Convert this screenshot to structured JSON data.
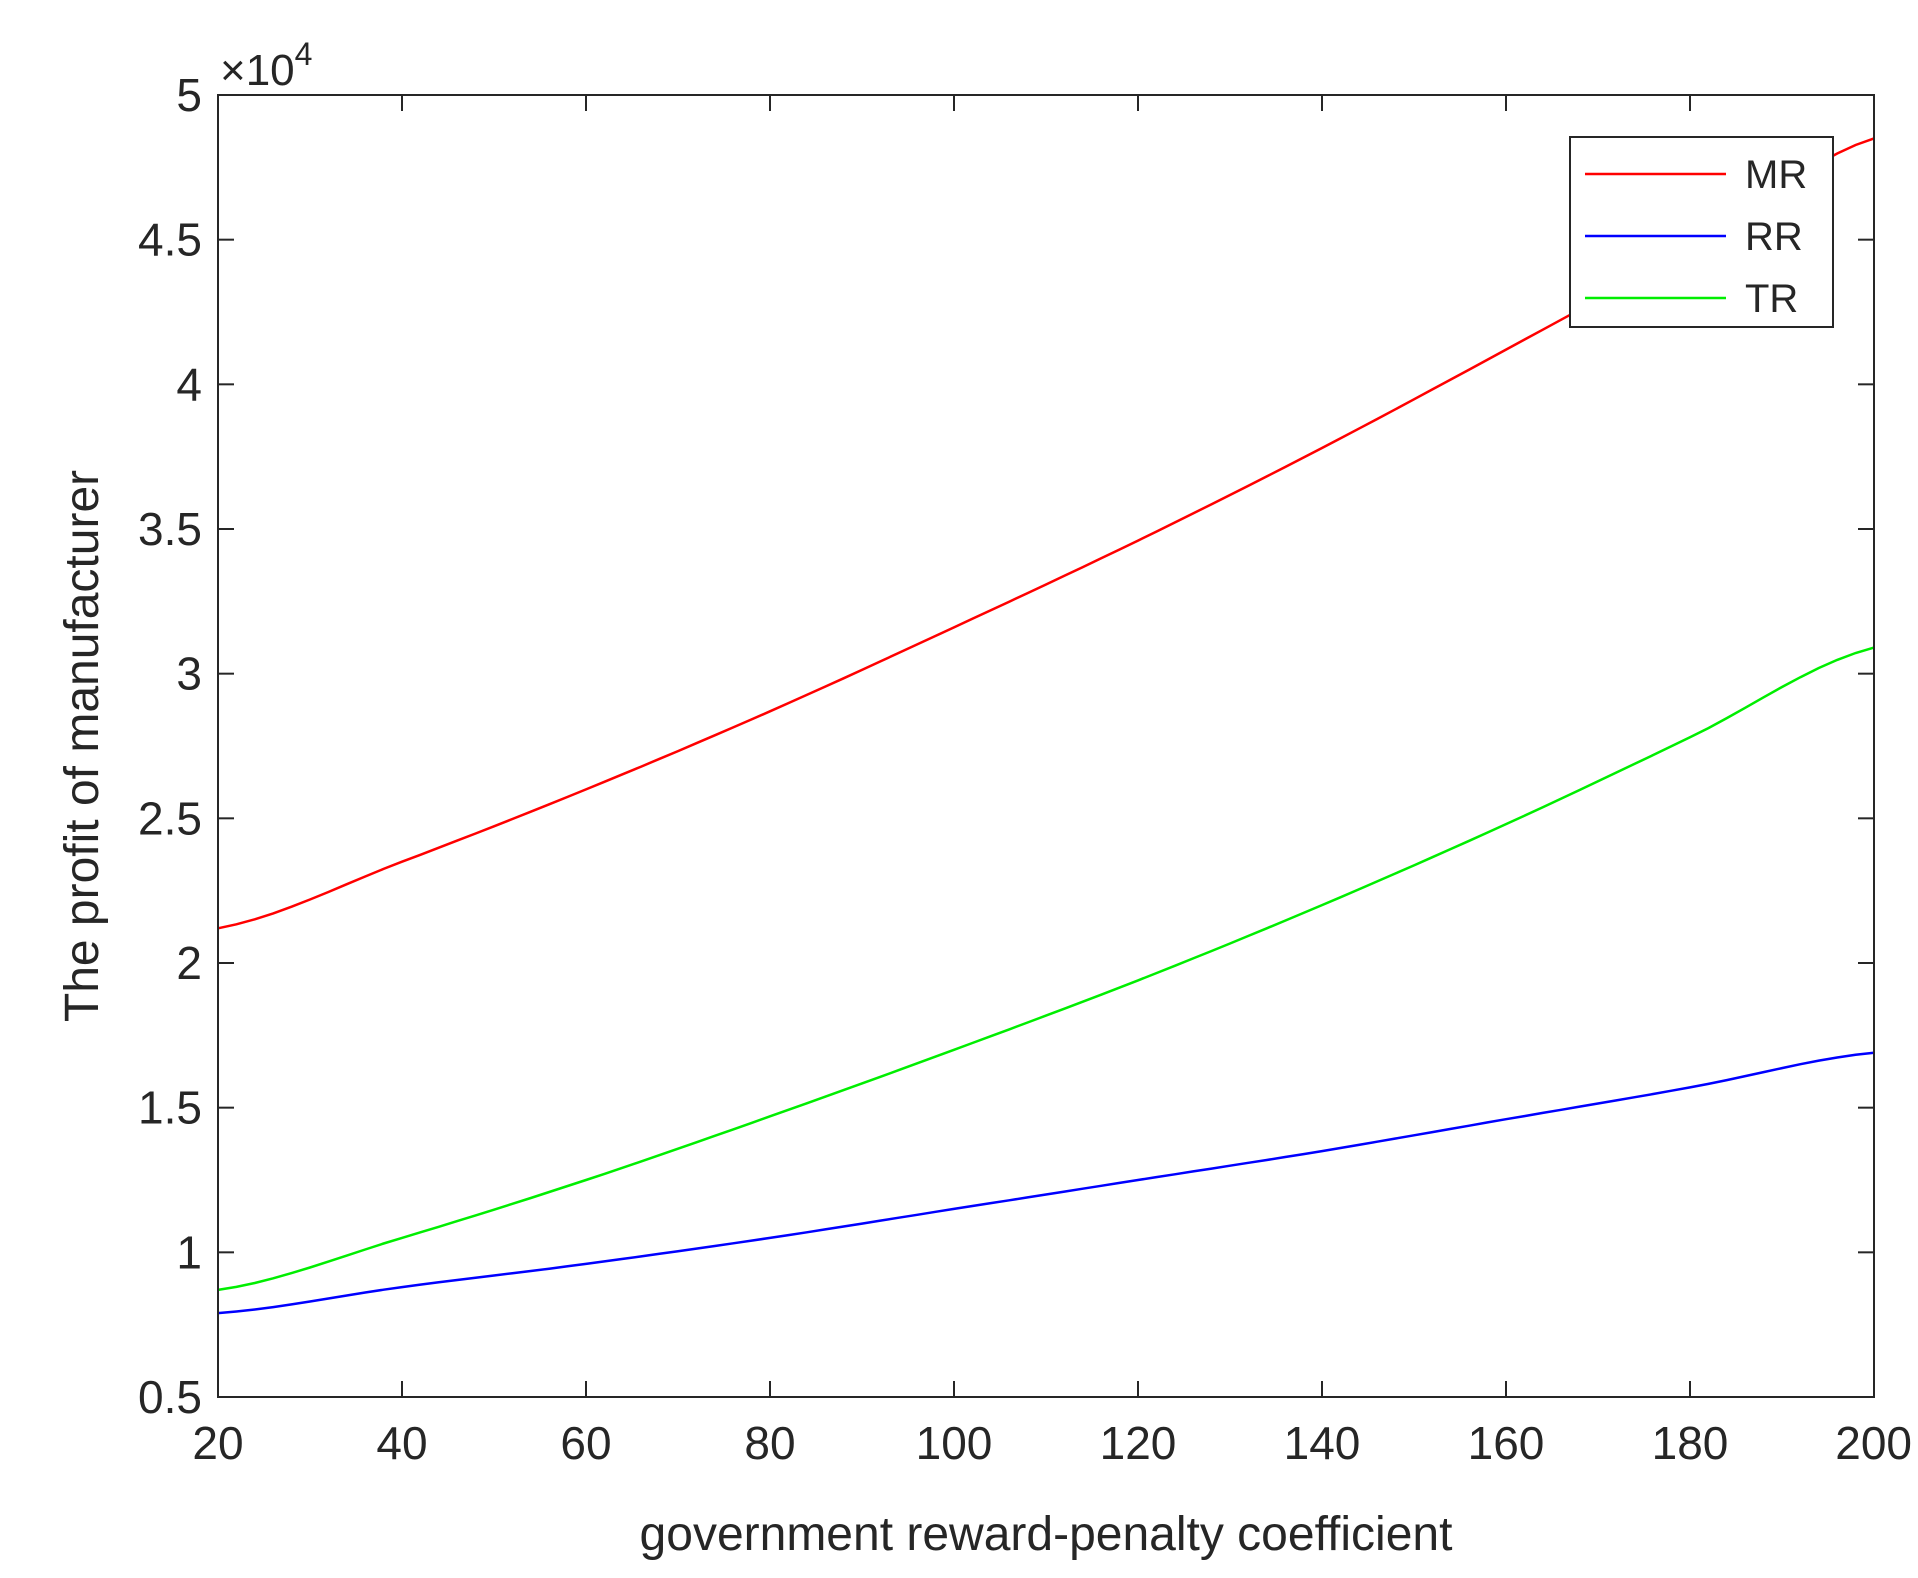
{
  "chart_data": {
    "type": "line",
    "title": "",
    "xlabel": "government reward-penalty coefficient",
    "ylabel": "The profit of manufacturer",
    "xlim": [
      20,
      200
    ],
    "ylim": [
      0.5,
      5
    ],
    "y_multiplier_label": "×10",
    "y_multiplier_exponent": "4",
    "xticks": [
      20,
      40,
      60,
      80,
      100,
      120,
      140,
      160,
      180,
      200
    ],
    "xtick_labels": [
      "20",
      "40",
      "60",
      "80",
      "100",
      "120",
      "140",
      "160",
      "180",
      "200"
    ],
    "yticks": [
      0.5,
      1,
      1.5,
      2,
      2.5,
      3,
      3.5,
      4,
      4.5,
      5
    ],
    "ytick_labels": [
      "0.5",
      "1",
      "1.5",
      "2",
      "2.5",
      "3",
      "3.5",
      "4",
      "4.5",
      "5"
    ],
    "grid": false,
    "legend_position": "top-right",
    "x": [
      20,
      40,
      60,
      80,
      100,
      120,
      140,
      160,
      180,
      200
    ],
    "series": [
      {
        "name": "MR",
        "color": "#ff0000",
        "values": [
          2.12,
          2.35,
          2.6,
          2.87,
          3.16,
          3.46,
          3.78,
          4.12,
          4.47,
          4.85
        ]
      },
      {
        "name": "RR",
        "color": "#0000ff",
        "values": [
          0.79,
          0.88,
          0.96,
          1.05,
          1.15,
          1.25,
          1.35,
          1.46,
          1.57,
          1.69
        ]
      },
      {
        "name": "TR",
        "color": "#00ee00",
        "values": [
          0.87,
          1.05,
          1.25,
          1.47,
          1.7,
          1.94,
          2.2,
          2.48,
          2.78,
          3.09
        ]
      }
    ]
  }
}
